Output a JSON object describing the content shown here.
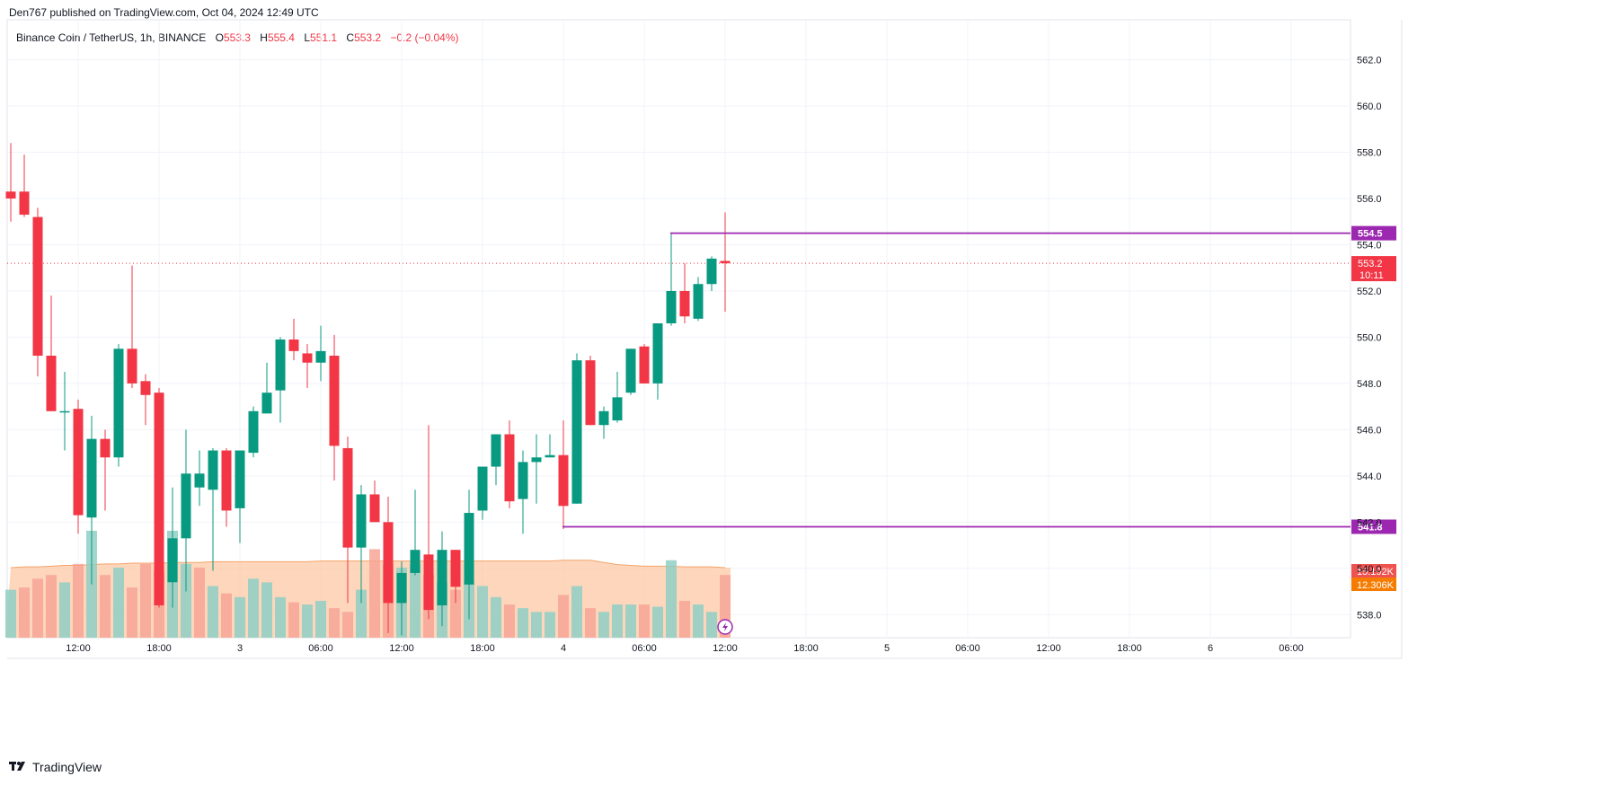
{
  "header": {
    "published_text": "Den767 published on TradingView.com, Oct 04, 2024 12:49 UTC"
  },
  "legend": {
    "symbol": "Binance Coin / TetherUS, 1h, BINANCE",
    "o_label": "O",
    "o_value": "553.3",
    "h_label": "H",
    "h_value": "555.4",
    "l_label": "L",
    "l_value": "551.1",
    "c_label": "C",
    "c_value": "553.2",
    "change": "−0.2 (−0.04%)"
  },
  "footer": {
    "brand": "TradingView"
  },
  "colors": {
    "up": "#089981",
    "down": "#f23645",
    "level": "#9c27b0",
    "volume_up": "#8fcfc4",
    "volume_down": "#f7a496",
    "volume_ma": "#fcc8a4"
  },
  "chart_data": {
    "type": "candlestick",
    "ylim": [
      537,
      563.5
    ],
    "y_ticks": [
      538,
      540,
      542,
      544,
      546,
      548,
      550,
      552,
      554,
      556,
      558,
      560,
      562
    ],
    "y_tick_labels": [
      "538.0",
      "540.0",
      "542.0",
      "544.0",
      "546.0",
      "548.0",
      "550.0",
      "552.0",
      "554.0",
      "556.0",
      "558.0",
      "560.0",
      "562.0"
    ],
    "x_ticks": [
      {
        "bar": 5,
        "label": "12:00"
      },
      {
        "bar": 11,
        "label": "18:00"
      },
      {
        "bar": 17,
        "label": "3"
      },
      {
        "bar": 23,
        "label": "06:00"
      },
      {
        "bar": 29,
        "label": "12:00"
      },
      {
        "bar": 35,
        "label": "18:00"
      },
      {
        "bar": 41,
        "label": "4"
      },
      {
        "bar": 47,
        "label": "06:00"
      },
      {
        "bar": 53,
        "label": "12:00"
      },
      {
        "bar": 59,
        "label": "18:00"
      },
      {
        "bar": 65,
        "label": "5"
      },
      {
        "bar": 71,
        "label": "06:00"
      },
      {
        "bar": 77,
        "label": "12:00"
      },
      {
        "bar": 83,
        "label": "18:00"
      },
      {
        "bar": 89,
        "label": "6"
      },
      {
        "bar": 95,
        "label": "06:00"
      }
    ],
    "candles": [
      {
        "o": 556.3,
        "h": 558.4,
        "l": 555.0,
        "c": 556.0
      },
      {
        "o": 556.3,
        "h": 557.9,
        "l": 555.2,
        "c": 555.3
      },
      {
        "o": 555.2,
        "h": 555.6,
        "l": 548.3,
        "c": 549.2
      },
      {
        "o": 549.2,
        "h": 551.8,
        "l": 546.8,
        "c": 546.8
      },
      {
        "o": 546.8,
        "h": 548.5,
        "l": 545.1,
        "c": 546.8
      },
      {
        "o": 546.9,
        "h": 547.3,
        "l": 541.5,
        "c": 542.3
      },
      {
        "o": 542.2,
        "h": 546.6,
        "l": 539.3,
        "c": 545.6
      },
      {
        "o": 545.6,
        "h": 546.0,
        "l": 542.5,
        "c": 544.8
      },
      {
        "o": 544.8,
        "h": 549.7,
        "l": 544.4,
        "c": 549.5
      },
      {
        "o": 549.5,
        "h": 553.1,
        "l": 547.8,
        "c": 548.0
      },
      {
        "o": 548.1,
        "h": 548.4,
        "l": 546.2,
        "c": 547.5
      },
      {
        "o": 547.6,
        "h": 547.8,
        "l": 538.3,
        "c": 538.4
      },
      {
        "o": 539.4,
        "h": 543.5,
        "l": 538.3,
        "c": 541.3
      },
      {
        "o": 541.3,
        "h": 546.0,
        "l": 539.0,
        "c": 544.1
      },
      {
        "o": 543.5,
        "h": 545.1,
        "l": 542.7,
        "c": 544.1
      },
      {
        "o": 543.4,
        "h": 545.2,
        "l": 539.9,
        "c": 545.1
      },
      {
        "o": 545.1,
        "h": 545.2,
        "l": 541.8,
        "c": 542.5
      },
      {
        "o": 542.6,
        "h": 545.1,
        "l": 541.1,
        "c": 545.1
      },
      {
        "o": 545.0,
        "h": 547.0,
        "l": 544.8,
        "c": 546.8
      },
      {
        "o": 546.7,
        "h": 548.9,
        "l": 546.7,
        "c": 547.6
      },
      {
        "o": 547.7,
        "h": 550.0,
        "l": 546.3,
        "c": 549.9
      },
      {
        "o": 549.9,
        "h": 550.8,
        "l": 549.0,
        "c": 549.4
      },
      {
        "o": 549.3,
        "h": 549.7,
        "l": 547.8,
        "c": 548.9
      },
      {
        "o": 548.9,
        "h": 550.5,
        "l": 548.1,
        "c": 549.4
      },
      {
        "o": 549.2,
        "h": 550.1,
        "l": 543.8,
        "c": 545.3
      },
      {
        "o": 545.2,
        "h": 545.7,
        "l": 538.5,
        "c": 540.9
      },
      {
        "o": 540.9,
        "h": 543.6,
        "l": 538.5,
        "c": 543.2
      },
      {
        "o": 543.2,
        "h": 543.8,
        "l": 542.1,
        "c": 542.0
      },
      {
        "o": 542.0,
        "h": 543.1,
        "l": 537.2,
        "c": 538.5
      },
      {
        "o": 538.5,
        "h": 540.3,
        "l": 537.1,
        "c": 539.8
      },
      {
        "o": 539.8,
        "h": 543.4,
        "l": 539.7,
        "c": 540.8
      },
      {
        "o": 540.6,
        "h": 546.2,
        "l": 537.8,
        "c": 538.2
      },
      {
        "o": 538.4,
        "h": 541.6,
        "l": 537.5,
        "c": 540.8
      },
      {
        "o": 540.8,
        "h": 540.8,
        "l": 538.5,
        "c": 539.2
      },
      {
        "o": 539.3,
        "h": 543.4,
        "l": 537.8,
        "c": 542.4
      },
      {
        "o": 542.5,
        "h": 544.2,
        "l": 542.1,
        "c": 544.4
      },
      {
        "o": 544.4,
        "h": 545.8,
        "l": 543.6,
        "c": 545.8
      },
      {
        "o": 545.8,
        "h": 546.4,
        "l": 542.6,
        "c": 542.9
      },
      {
        "o": 543.0,
        "h": 545.1,
        "l": 541.5,
        "c": 544.6
      },
      {
        "o": 544.6,
        "h": 545.8,
        "l": 542.8,
        "c": 544.8
      },
      {
        "o": 544.8,
        "h": 545.8,
        "l": 544.8,
        "c": 544.9
      },
      {
        "o": 544.9,
        "h": 546.4,
        "l": 541.7,
        "c": 542.7
      },
      {
        "o": 542.8,
        "h": 549.3,
        "l": 542.8,
        "c": 549.0
      },
      {
        "o": 549.0,
        "h": 549.2,
        "l": 546.2,
        "c": 546.2
      },
      {
        "o": 546.2,
        "h": 547.0,
        "l": 545.6,
        "c": 546.8
      },
      {
        "o": 546.4,
        "h": 548.5,
        "l": 546.3,
        "c": 547.4
      },
      {
        "o": 547.6,
        "h": 549.5,
        "l": 547.5,
        "c": 549.5
      },
      {
        "o": 549.6,
        "h": 549.7,
        "l": 548.0,
        "c": 548.0
      },
      {
        "o": 548.0,
        "h": 550.6,
        "l": 547.3,
        "c": 550.6
      },
      {
        "o": 550.6,
        "h": 554.5,
        "l": 550.5,
        "c": 552.0
      },
      {
        "o": 552.0,
        "h": 553.2,
        "l": 550.6,
        "c": 550.9
      },
      {
        "o": 550.8,
        "h": 552.6,
        "l": 550.7,
        "c": 552.3
      },
      {
        "o": 552.3,
        "h": 553.5,
        "l": 552.0,
        "c": 553.4
      },
      {
        "o": 553.3,
        "h": 555.4,
        "l": 551.1,
        "c": 553.2
      }
    ],
    "volume": {
      "values": [
        6.5,
        6.8,
        8.0,
        8.5,
        7.5,
        10.0,
        14.5,
        8.5,
        9.5,
        6.8,
        10.0,
        9.0,
        14.5,
        10.0,
        9.5,
        7.0,
        6.0,
        5.5,
        8.0,
        7.5,
        5.5,
        4.8,
        4.5,
        5.0,
        4.0,
        3.5,
        6.5,
        12.0,
        10.0,
        9.5,
        10.0,
        8.5,
        7.5,
        6.5,
        7.5,
        7.0,
        5.5,
        4.5,
        4.0,
        3.5,
        3.5,
        5.8,
        7.0,
        4.0,
        3.5,
        4.5,
        4.5,
        4.5,
        4.2,
        10.5,
        5.0,
        4.5,
        3.5,
        8.5
      ],
      "up_flags": [
        true,
        false,
        false,
        false,
        true,
        false,
        true,
        false,
        true,
        false,
        false,
        false,
        true,
        true,
        false,
        true,
        false,
        true,
        true,
        true,
        true,
        false,
        true,
        true,
        false,
        false,
        true,
        false,
        false,
        true,
        true,
        false,
        true,
        false,
        true,
        true,
        true,
        false,
        true,
        true,
        true,
        false,
        true,
        false,
        true,
        true,
        true,
        false,
        true,
        true,
        false,
        true,
        true,
        false
      ],
      "ma": [
        9.5,
        9.6,
        9.6,
        9.7,
        9.8,
        9.8,
        9.9,
        10.0,
        10.0,
        10.1,
        10.1,
        10.1,
        10.2,
        10.2,
        10.2,
        10.3,
        10.3,
        10.3,
        10.3,
        10.3,
        10.3,
        10.3,
        10.3,
        10.4,
        10.4,
        10.4,
        10.4,
        10.4,
        10.4,
        10.4,
        10.4,
        10.4,
        10.4,
        10.4,
        10.4,
        10.4,
        10.4,
        10.4,
        10.4,
        10.4,
        10.4,
        10.5,
        10.5,
        10.5,
        10.2,
        9.9,
        9.8,
        9.7,
        9.7,
        9.7,
        9.6,
        9.6,
        9.6,
        9.5
      ],
      "scale_max": 28
    },
    "levels": [
      {
        "value": 554.5,
        "label": "554.5",
        "from_bar": 49
      },
      {
        "value": 541.8,
        "label": "541.8",
        "from_bar": 41
      }
    ],
    "last_price": {
      "value": 553.2,
      "label": "553.2",
      "countdown": "10:11"
    },
    "volume_labels": [
      {
        "label": "15.192K",
        "color": "#ef5350"
      },
      {
        "label": "12.306K",
        "color": "#f57c00"
      }
    ]
  }
}
